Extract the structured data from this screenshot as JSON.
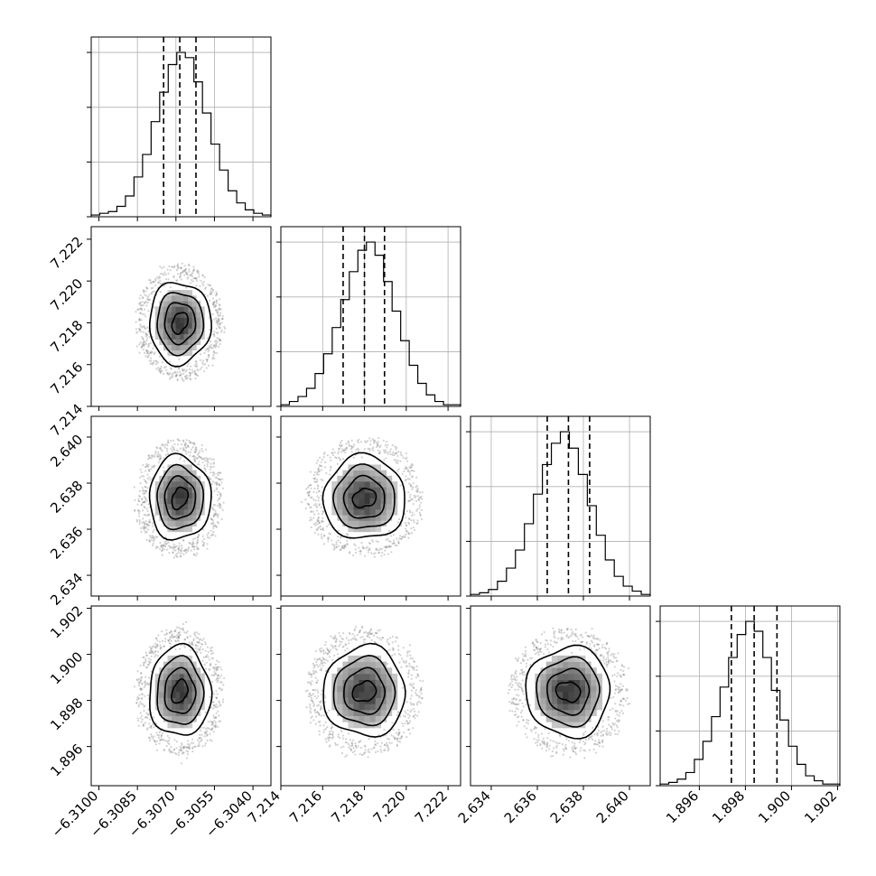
{
  "chart_data": {
    "type": "corner",
    "title": "",
    "parameters": [
      {
        "index": 0,
        "range": [
          -6.3103,
          -6.3033
        ],
        "ticks": [
          -6.31,
          -6.3085,
          -6.307,
          -6.3055,
          -6.304
        ],
        "tick_labels": [
          "−6.3100",
          "−6.3085",
          "−6.3070",
          "−6.3055",
          "−6.3040"
        ],
        "quantiles": [
          -6.30748,
          -6.30685,
          -6.30622
        ],
        "hist_counts": [
          1,
          2,
          3,
          6,
          12,
          23,
          36,
          55,
          72,
          88,
          95,
          92,
          78,
          60,
          42,
          27,
          15,
          8,
          4,
          2,
          1
        ]
      },
      {
        "index": 1,
        "range": [
          7.214,
          7.2226
        ],
        "ticks": [
          7.214,
          7.216,
          7.218,
          7.22,
          7.222
        ],
        "tick_labels": [
          "7.214",
          "7.216",
          "7.218",
          "7.220",
          "7.222"
        ],
        "quantiles": [
          7.21698,
          7.218,
          7.21896
        ],
        "hist_counts": [
          1,
          3,
          6,
          11,
          20,
          32,
          48,
          65,
          82,
          95,
          100,
          92,
          76,
          58,
          40,
          25,
          14,
          7,
          3,
          1,
          1
        ]
      },
      {
        "index": 2,
        "range": [
          2.6331,
          2.6409
        ],
        "ticks": [
          2.634,
          2.636,
          2.638,
          2.64
        ],
        "tick_labels": [
          "2.634",
          "2.636",
          "2.638",
          "2.640"
        ],
        "quantiles": [
          2.63643,
          2.63735,
          2.63827
        ],
        "hist_counts": [
          1,
          2,
          4,
          9,
          17,
          28,
          44,
          62,
          80,
          93,
          100,
          90,
          74,
          55,
          37,
          22,
          12,
          6,
          3,
          1
        ]
      },
      {
        "index": 3,
        "range": [
          1.8943,
          1.9021
        ],
        "ticks": [
          1.896,
          1.898,
          1.9,
          1.902
        ],
        "tick_labels": [
          "1.896",
          "1.898",
          "1.900",
          "1.902"
        ],
        "quantiles": [
          1.89739,
          1.89838,
          1.89937
        ],
        "hist_counts": [
          1,
          2,
          4,
          8,
          16,
          27,
          42,
          60,
          78,
          92,
          100,
          94,
          78,
          58,
          40,
          24,
          13,
          6,
          3,
          1,
          1
        ]
      }
    ],
    "means": [
      -6.30685,
      7.218,
      2.63735,
      1.89838
    ],
    "sigmas": [
      0.0006,
      0.00098,
      0.00091,
      0.00098
    ],
    "contour_levels_sigma": [
      0.5,
      1.0,
      1.5,
      2.0
    ],
    "hist2d_bins": 12,
    "n_scatter_points": 520,
    "grid": true
  }
}
